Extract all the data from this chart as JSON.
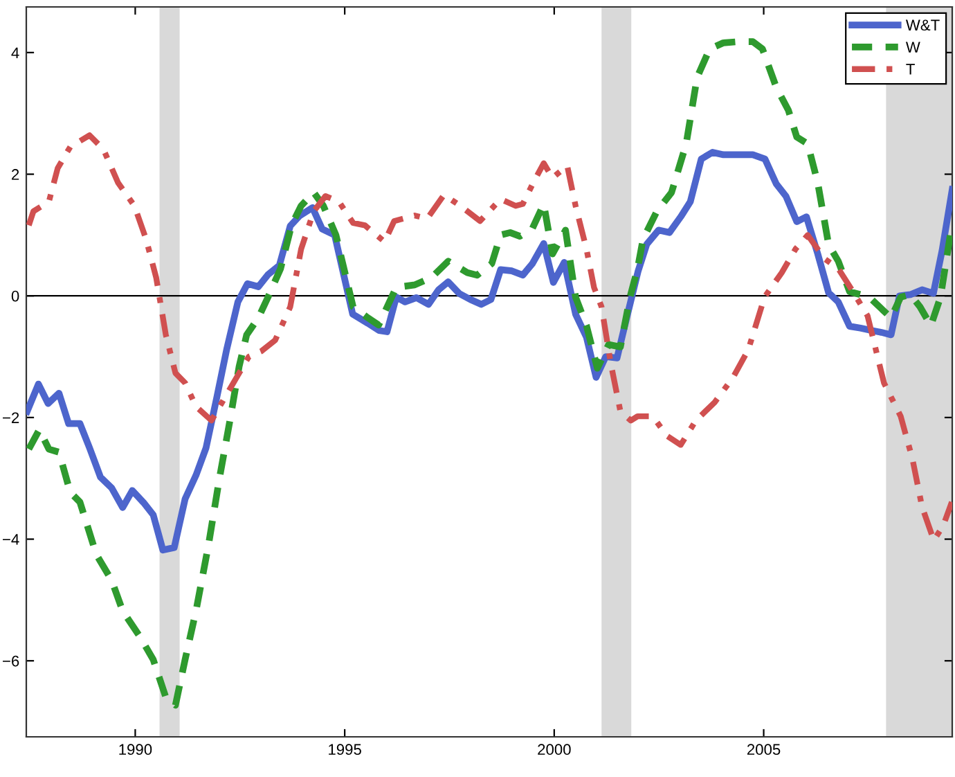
{
  "chart_data": {
    "type": "line",
    "xlim": [
      1987.4,
      2009.5
    ],
    "ylim": [
      -7.25,
      4.75
    ],
    "xticks": [
      1990,
      1995,
      2000,
      2005
    ],
    "yticks": [
      {
        "value": -6,
        "label": "−6"
      },
      {
        "value": -4,
        "label": "−4"
      },
      {
        "value": -2,
        "label": "−2"
      },
      0,
      2,
      4
    ],
    "grid": false,
    "legend": "top right",
    "ref_lines": [
      {
        "axis": "y",
        "value": 0,
        "color": "#000000",
        "line_style": "solid"
      }
    ],
    "bands": [
      {
        "axis": "x",
        "from": 1990.58,
        "to": 1991.06,
        "color": "#d9d9d9"
      },
      {
        "axis": "x",
        "from": 2001.13,
        "to": 2001.84,
        "color": "#d9d9d9"
      },
      {
        "axis": "x",
        "from": 2007.92,
        "to": 2009.5,
        "color": "#d9d9d9"
      }
    ],
    "series": [
      {
        "name": "W&T",
        "color": "#4d65cc",
        "line_style": "solid",
        "x": [
          1987.42,
          1987.69,
          1987.92,
          1988.18,
          1988.41,
          1988.68,
          1988.91,
          1989.17,
          1989.44,
          1989.7,
          1989.93,
          1990.2,
          1990.43,
          1990.66,
          1990.93,
          1991.19,
          1991.45,
          1991.69,
          1991.95,
          1992.18,
          1992.45,
          1992.68,
          1992.94,
          1993.17,
          1993.44,
          1993.7,
          1993.93,
          1994.23,
          1994.46,
          1994.76,
          1995.19,
          1995.55,
          1995.82,
          1996.01,
          1996.23,
          1996.44,
          1996.71,
          1997.0,
          1997.24,
          1997.47,
          1997.73,
          1998.0,
          1998.26,
          1998.49,
          1998.72,
          1998.99,
          1999.25,
          1999.48,
          1999.75,
          1999.98,
          2000.24,
          2000.51,
          2000.77,
          2001.0,
          2001.23,
          2001.5,
          2001.73,
          2002.0,
          2002.21,
          2002.49,
          2002.75,
          2003.02,
          2003.25,
          2003.51,
          2003.78,
          2004.04,
          2004.41,
          2004.74,
          2005.03,
          2005.3,
          2005.53,
          2005.79,
          2006.02,
          2006.29,
          2006.55,
          2006.78,
          2007.05,
          2007.31,
          2007.58,
          2007.81,
          2008.04,
          2008.24,
          2008.5,
          2008.78,
          2009.05,
          2009.26,
          2009.5
        ],
        "values": [
          -1.9,
          -1.45,
          -1.77,
          -1.6,
          -2.1,
          -2.1,
          -2.5,
          -2.98,
          -3.16,
          -3.48,
          -3.2,
          -3.4,
          -3.6,
          -4.18,
          -4.14,
          -3.34,
          -2.95,
          -2.5,
          -1.66,
          -0.89,
          -0.1,
          0.2,
          0.15,
          0.35,
          0.5,
          1.15,
          1.32,
          1.45,
          1.1,
          1.0,
          -0.3,
          -0.45,
          -0.57,
          -0.59,
          -0.02,
          -0.1,
          -0.03,
          -0.14,
          0.1,
          0.23,
          0.04,
          -0.06,
          -0.14,
          -0.06,
          0.43,
          0.41,
          0.34,
          0.53,
          0.86,
          0.22,
          0.55,
          -0.3,
          -0.68,
          -1.34,
          -1.0,
          -1.02,
          -0.36,
          0.4,
          0.85,
          1.08,
          1.04,
          1.3,
          1.55,
          2.25,
          2.36,
          2.32,
          2.32,
          2.32,
          2.25,
          1.84,
          1.64,
          1.22,
          1.3,
          0.69,
          0.05,
          -0.1,
          -0.5,
          -0.53,
          -0.57,
          -0.6,
          -0.64,
          0.0,
          0.02,
          0.1,
          0.04,
          0.75,
          1.75
        ]
      },
      {
        "name": "W",
        "color": "#2e9a2e",
        "line_style": "dashed",
        "x": [
          1987.46,
          1987.71,
          1987.94,
          1988.18,
          1988.45,
          1988.68,
          1989.07,
          1989.44,
          1989.7,
          1990.1,
          1990.43,
          1990.73,
          1990.96,
          1991.19,
          1991.45,
          1991.75,
          1992.01,
          1992.26,
          1992.48,
          1992.66,
          1992.94,
          1993.17,
          1993.47,
          1993.73,
          1993.96,
          1994.26,
          1994.49,
          1994.79,
          1995.2,
          1995.55,
          1995.81,
          1996.23,
          1996.67,
          1997.07,
          1997.47,
          1997.93,
          1998.16,
          1998.51,
          1998.72,
          1998.95,
          1999.18,
          1999.48,
          1999.75,
          1999.96,
          2000.27,
          2000.51,
          2000.77,
          2001.03,
          2001.3,
          2001.58,
          2001.81,
          2001.99,
          2002.12,
          2002.45,
          2002.8,
          2003.15,
          2003.41,
          2003.71,
          2004.04,
          2004.41,
          2004.74,
          2004.97,
          2005.3,
          2005.59,
          2005.79,
          2006.05,
          2006.29,
          2006.55,
          2006.78,
          2007.05,
          2007.31,
          2007.58,
          2007.87,
          2008.04,
          2008.27,
          2008.5,
          2008.73,
          2008.99,
          2009.22,
          2009.49
        ],
        "values": [
          -2.52,
          -2.2,
          -2.52,
          -2.57,
          -3.23,
          -3.39,
          -4.25,
          -4.68,
          -5.18,
          -5.59,
          -5.98,
          -6.6,
          -6.73,
          -5.98,
          -5.18,
          -4.09,
          -3.0,
          -2.05,
          -1.16,
          -0.64,
          -0.36,
          -0.02,
          0.45,
          1.16,
          1.48,
          1.7,
          1.48,
          1.0,
          -0.18,
          -0.36,
          -0.48,
          0.14,
          0.18,
          0.3,
          0.57,
          0.38,
          0.34,
          0.53,
          1.0,
          1.04,
          0.98,
          1.11,
          1.51,
          0.69,
          1.08,
          -0.02,
          -0.49,
          -1.19,
          -0.8,
          -0.84,
          -0.02,
          0.45,
          0.93,
          1.39,
          1.7,
          2.5,
          3.59,
          4.06,
          4.16,
          4.18,
          4.18,
          4.06,
          3.43,
          3.05,
          2.61,
          2.5,
          1.86,
          0.84,
          0.57,
          0.07,
          0.02,
          -0.06,
          -0.25,
          -0.36,
          -0.02,
          0.02,
          -0.18,
          -0.49,
          -0.02,
          1.16
        ]
      },
      {
        "name": "T",
        "color": "#d05050",
        "line_style": "dashdot",
        "x": [
          1987.46,
          1987.57,
          1987.94,
          1988.15,
          1988.45,
          1988.91,
          1989.24,
          1989.59,
          1989.98,
          1990.26,
          1990.5,
          1990.73,
          1990.96,
          1991.19,
          1991.45,
          1991.82,
          1992.15,
          1992.48,
          1992.71,
          1993.01,
          1993.34,
          1993.7,
          1993.96,
          1994.26,
          1994.54,
          1994.86,
          1995.2,
          1995.48,
          1995.95,
          1996.18,
          1996.67,
          1996.97,
          1997.37,
          1997.76,
          1998.23,
          1998.72,
          1999.08,
          1999.25,
          1999.53,
          1999.75,
          1999.96,
          2000.31,
          2000.51,
          2000.77,
          2000.95,
          2001.13,
          2001.35,
          2001.58,
          2001.83,
          2001.99,
          2002.35,
          2002.69,
          2003.02,
          2003.38,
          2003.83,
          2004.27,
          2004.63,
          2005.02,
          2005.43,
          2005.76,
          2006.05,
          2006.45,
          2006.78,
          2007.13,
          2007.48,
          2007.87,
          2008.27,
          2008.55,
          2008.78,
          2009.06,
          2009.29,
          2009.49
        ],
        "values": [
          1.16,
          1.39,
          1.55,
          2.1,
          2.45,
          2.64,
          2.41,
          1.86,
          1.48,
          0.93,
          0.3,
          -0.64,
          -1.27,
          -1.43,
          -1.82,
          -2.05,
          -1.66,
          -1.27,
          -1.0,
          -0.91,
          -0.73,
          -0.18,
          0.77,
          1.39,
          1.64,
          1.55,
          1.2,
          1.16,
          0.89,
          1.23,
          1.32,
          1.27,
          1.66,
          1.48,
          1.23,
          1.59,
          1.48,
          1.51,
          1.9,
          2.18,
          1.94,
          2.14,
          1.48,
          0.77,
          0.14,
          -0.18,
          -1.11,
          -1.9,
          -2.05,
          -1.98,
          -1.98,
          -2.3,
          -2.45,
          -2.05,
          -1.75,
          -1.34,
          -0.89,
          -0.02,
          0.38,
          0.77,
          1.0,
          0.61,
          0.45,
          0.07,
          -0.33,
          -1.43,
          -1.98,
          -2.68,
          -3.47,
          -4.02,
          -3.77,
          -3.39
        ]
      }
    ]
  }
}
